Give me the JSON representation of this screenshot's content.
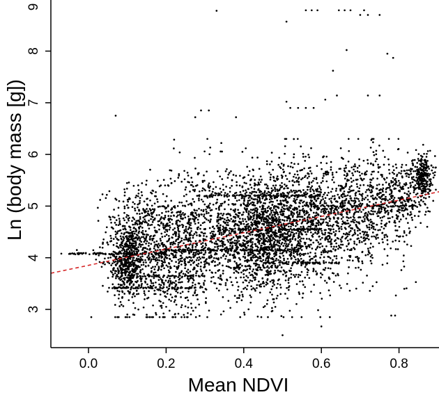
{
  "chart_data": {
    "type": "scatter",
    "xlabel": "Mean NDVI",
    "ylabel": "Ln (body mass [g])",
    "xlim": [
      -0.1,
      0.93
    ],
    "ylim": [
      2.4,
      9.0
    ],
    "x_ticks": [
      0.0,
      0.2,
      0.4,
      0.6,
      0.8
    ],
    "x_tick_labels": [
      "0.0",
      "0.2",
      "0.4",
      "0.6",
      "0.8"
    ],
    "y_ticks": [
      3,
      4,
      5,
      6,
      7,
      8,
      9
    ],
    "y_tick_labels": [
      "3",
      "4",
      "5",
      "6",
      "7",
      "8",
      "9"
    ],
    "grid": false,
    "legend": "none",
    "point_color": "#000000",
    "trend_color": "#d62728",
    "trend_line": {
      "style": "dashed",
      "x": [
        -0.1,
        0.93
      ],
      "y": [
        3.7,
        5.32
      ]
    },
    "point_groups": [
      {
        "cx": 0.1,
        "cy": 3.9,
        "sx": 0.02,
        "sy": 0.35,
        "n": 400
      },
      {
        "cx": 0.12,
        "cy": 4.4,
        "sx": 0.04,
        "sy": 0.5,
        "n": 350
      },
      {
        "cx": 0.2,
        "cy": 4.0,
        "sx": 0.06,
        "sy": 0.6,
        "n": 600
      },
      {
        "cx": 0.3,
        "cy": 4.5,
        "sx": 0.07,
        "sy": 0.65,
        "n": 750
      },
      {
        "cx": 0.45,
        "cy": 4.4,
        "sx": 0.06,
        "sy": 0.55,
        "n": 1200
      },
      {
        "cx": 0.55,
        "cy": 4.7,
        "sx": 0.07,
        "sy": 0.6,
        "n": 800
      },
      {
        "cx": 0.68,
        "cy": 4.9,
        "sx": 0.07,
        "sy": 0.55,
        "n": 700
      },
      {
        "cx": 0.8,
        "cy": 5.2,
        "sx": 0.04,
        "sy": 0.4,
        "n": 300
      },
      {
        "cx": 0.86,
        "cy": 5.6,
        "sx": 0.012,
        "sy": 0.2,
        "n": 250
      }
    ],
    "point_bands": [
      {
        "x0": -0.05,
        "x1": 0.2,
        "y": 4.08,
        "n": 90
      },
      {
        "x0": 0.05,
        "x1": 0.3,
        "y": 3.42,
        "n": 60
      },
      {
        "x0": 0.2,
        "x1": 0.55,
        "y": 4.15,
        "n": 110
      },
      {
        "x0": 0.3,
        "x1": 0.6,
        "y": 5.2,
        "n": 90
      },
      {
        "x0": 0.35,
        "x1": 0.6,
        "y": 4.55,
        "n": 70
      },
      {
        "x0": 0.1,
        "x1": 0.3,
        "y": 3.65,
        "n": 50
      },
      {
        "x0": 0.55,
        "x1": 0.85,
        "y": 5.0,
        "n": 70
      },
      {
        "x0": 0.45,
        "x1": 0.65,
        "y": 3.9,
        "n": 70
      }
    ],
    "outliers": [
      [
        0.33,
        8.78
      ],
      [
        0.51,
        8.57
      ],
      [
        0.56,
        8.79
      ],
      [
        0.575,
        8.79
      ],
      [
        0.59,
        8.79
      ],
      [
        0.645,
        8.79
      ],
      [
        0.66,
        8.79
      ],
      [
        0.675,
        8.79
      ],
      [
        0.7,
        8.7
      ],
      [
        0.71,
        8.79
      ],
      [
        0.72,
        8.7
      ],
      [
        0.75,
        8.7
      ],
      [
        0.77,
        7.95
      ],
      [
        0.785,
        7.87
      ],
      [
        0.665,
        8.02
      ],
      [
        0.63,
        7.62
      ],
      [
        0.64,
        7.14
      ],
      [
        0.72,
        7.14
      ],
      [
        0.75,
        7.14
      ],
      [
        0.61,
        7.06
      ],
      [
        0.51,
        7.02
      ],
      [
        0.52,
        6.9
      ],
      [
        0.54,
        6.9
      ],
      [
        0.56,
        6.9
      ],
      [
        0.58,
        6.9
      ],
      [
        0.29,
        6.85
      ],
      [
        0.31,
        6.85
      ],
      [
        0.275,
        6.72
      ],
      [
        0.07,
        6.75
      ],
      [
        0.38,
        6.72
      ],
      [
        0.5,
        2.5
      ],
      [
        0.6,
        2.67
      ],
      [
        0.1,
        2.9
      ],
      [
        0.115,
        2.9
      ],
      [
        0.78,
        2.88
      ],
      [
        0.79,
        2.88
      ],
      [
        -0.07,
        4.08
      ],
      [
        -0.03,
        4.15
      ],
      [
        0.03,
        5.12
      ],
      [
        0.08,
        3.06
      ]
    ]
  }
}
